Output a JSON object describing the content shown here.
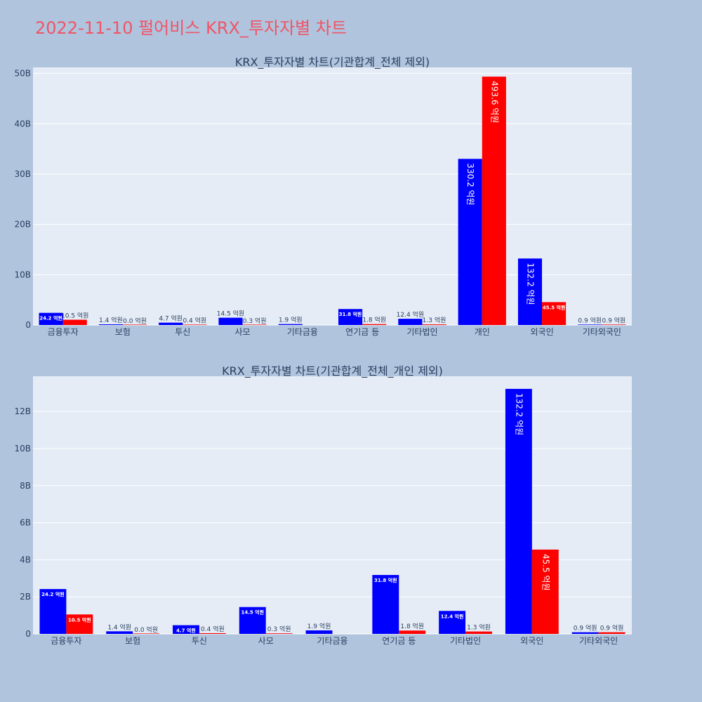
{
  "page": {
    "title": "2022-11-10 펄어비스 KRX_투자자별 차트",
    "title_color": "#ef5566",
    "background": "#b0c4de",
    "plot_background": "#e5ecf6",
    "grid_color": "#ffffff",
    "text_color": "#2a3f5f"
  },
  "chart_data": [
    {
      "type": "bar",
      "title": "KRX_투자자별 차트(기관합계_전체 제외)",
      "categories": [
        "금융투자",
        "보험",
        "투신",
        "사모",
        "기타금융",
        "연기금 등",
        "기타법인",
        "개인",
        "외국인",
        "기타외국인"
      ],
      "y_ticks": [
        0,
        10,
        20,
        30,
        40,
        50
      ],
      "y_tick_labels": [
        "0",
        "10B",
        "20B",
        "30B",
        "40B",
        "50B"
      ],
      "ylim": [
        0,
        51.2
      ],
      "grid": true,
      "series": [
        {
          "color": "#0000ff",
          "values": [
            2.42,
            0.14,
            0.47,
            1.45,
            0.19,
            3.18,
            1.24,
            33.02,
            13.22,
            0.09
          ],
          "labels": [
            "24.2 억원",
            "1.4 억원",
            "4.7 억원",
            "14.5 억원",
            "1.9 억원",
            "31.8 억원",
            "12.4 억원",
            "330.2 억원",
            "132.2 억원",
            "0.9 억원"
          ]
        },
        {
          "color": "#ff0000",
          "values": [
            1.05,
            0.0,
            0.04,
            0.03,
            null,
            0.18,
            0.13,
            49.36,
            4.55,
            0.09
          ],
          "labels": [
            "10.5 억원",
            "0.0 억원",
            "0.4 억원",
            "0.3 억원",
            "",
            "1.8 억원",
            "1.3 억원",
            "493.6 억원",
            "45.5 억원",
            "0.9 억원"
          ]
        }
      ]
    },
    {
      "type": "bar",
      "title": "KRX_투자자별 차트(기관합계_전체_개인 제외)",
      "categories": [
        "금융투자",
        "보험",
        "투신",
        "사모",
        "기타금융",
        "연기금 등",
        "기타법인",
        "외국인",
        "기타외국인"
      ],
      "y_ticks": [
        0,
        2,
        4,
        6,
        8,
        10,
        12
      ],
      "y_tick_labels": [
        "0",
        "2B",
        "4B",
        "6B",
        "8B",
        "10B",
        "12B"
      ],
      "ylim": [
        0,
        13.9
      ],
      "grid": true,
      "series": [
        {
          "color": "#0000ff",
          "values": [
            2.42,
            0.14,
            0.47,
            1.45,
            0.19,
            3.18,
            1.24,
            13.22,
            0.09
          ],
          "labels": [
            "24.2 억원",
            "1.4 억원",
            "4.7 억원",
            "14.5 억원",
            "1.9 억원",
            "31.8 억원",
            "12.4 억원",
            "132.2 억원",
            "0.9 억원"
          ]
        },
        {
          "color": "#ff0000",
          "values": [
            1.05,
            0.0,
            0.04,
            0.03,
            null,
            0.18,
            0.13,
            4.55,
            0.09
          ],
          "labels": [
            "10.5 억원",
            "0.0 억원",
            "0.4 억원",
            "0.3 억원",
            "",
            "1.8 억원",
            "1.3 억원",
            "45.5 억원",
            "0.9 억원"
          ]
        }
      ]
    }
  ]
}
